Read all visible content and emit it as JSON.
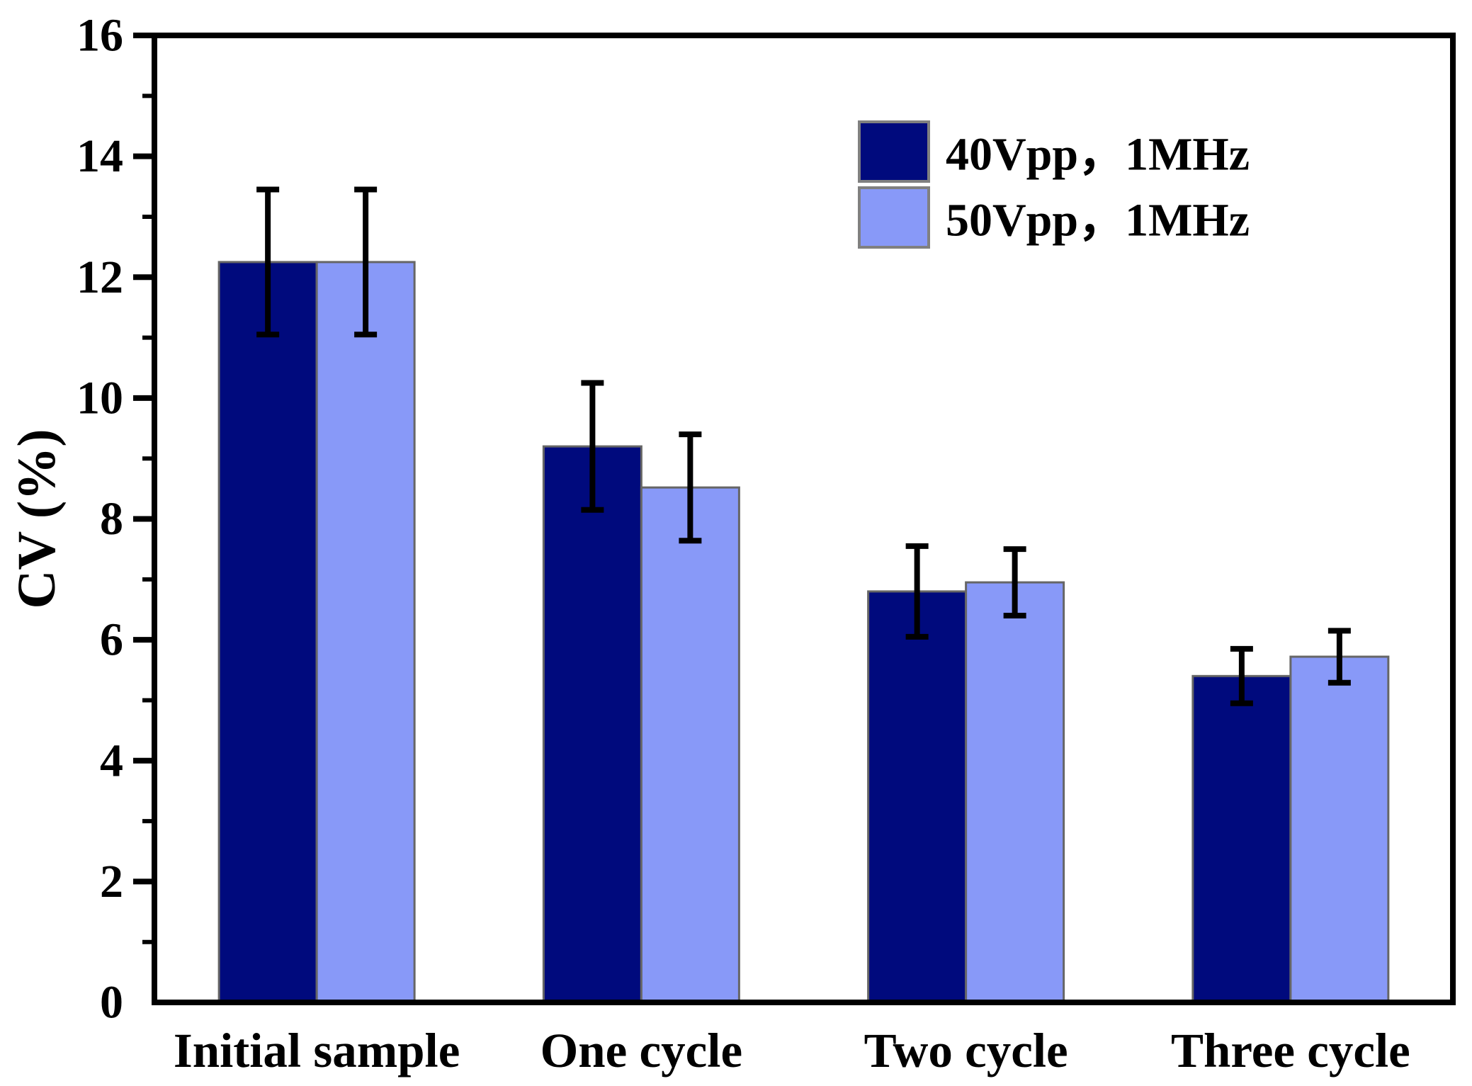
{
  "chart_data": {
    "type": "bar",
    "title": "",
    "xlabel": "",
    "ylabel": "CV (%)",
    "categories": [
      "Initial sample",
      "One cycle",
      "Two cycle",
      "Three cycle"
    ],
    "series": [
      {
        "name": "40Vpp，1MHz",
        "color": "#000a7d",
        "values": [
          12.25,
          9.2,
          6.8,
          5.4
        ],
        "errors": [
          1.2,
          1.05,
          0.75,
          0.45
        ]
      },
      {
        "name": "50Vpp，1MHz",
        "color": "#8899f8",
        "values": [
          12.25,
          8.52,
          6.95,
          5.72
        ],
        "errors": [
          1.2,
          0.88,
          0.55,
          0.43
        ]
      }
    ],
    "ylim": [
      0,
      16
    ],
    "yticks": [
      0,
      2,
      4,
      6,
      8,
      10,
      12,
      14,
      16
    ],
    "minor_tick_step": 1,
    "grid": false,
    "legend_position": "top-right",
    "bar_edge_color": "#666666",
    "error_bar_color": "#000000",
    "axis_color": "#000000"
  }
}
